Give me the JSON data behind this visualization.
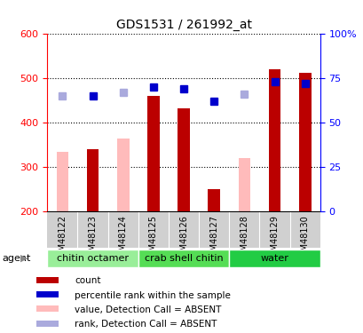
{
  "title": "GDS1531 / 261992_at",
  "samples": [
    "GSM48122",
    "GSM48123",
    "GSM48124",
    "GSM48125",
    "GSM48126",
    "GSM48127",
    "GSM48128",
    "GSM48129",
    "GSM48130"
  ],
  "groups": [
    {
      "name": "chitin octamer",
      "indices": [
        0,
        1,
        2
      ],
      "color": "#99ee99"
    },
    {
      "name": "crab shell chitin",
      "indices": [
        3,
        4,
        5
      ],
      "color": "#55dd55"
    },
    {
      "name": "water",
      "indices": [
        6,
        7,
        8
      ],
      "color": "#22cc44"
    }
  ],
  "bar_values": [
    null,
    340,
    null,
    460,
    432,
    250,
    null,
    519,
    512
  ],
  "bar_absent": [
    333,
    null,
    363,
    null,
    null,
    null,
    319,
    null,
    null
  ],
  "rank_present_pct": [
    null,
    65,
    null,
    70,
    69,
    62,
    null,
    73,
    72
  ],
  "rank_absent_pct": [
    65,
    null,
    67,
    null,
    null,
    null,
    66,
    null,
    null
  ],
  "ylim_left": [
    200,
    600
  ],
  "ylim_right": [
    0,
    100
  ],
  "yticks_left": [
    200,
    300,
    400,
    500,
    600
  ],
  "yticks_right": [
    0,
    25,
    50,
    75,
    100
  ],
  "yticklabels_right": [
    "0",
    "25",
    "50",
    "75",
    "100%"
  ],
  "bar_color": "#bb0000",
  "bar_absent_color": "#ffbbbb",
  "rank_present_color": "#0000cc",
  "rank_absent_color": "#aaaadd",
  "marker_size": 6,
  "legend_items": [
    {
      "label": "count",
      "color": "#bb0000"
    },
    {
      "label": "percentile rank within the sample",
      "color": "#0000cc"
    },
    {
      "label": "value, Detection Call = ABSENT",
      "color": "#ffbbbb"
    },
    {
      "label": "rank, Detection Call = ABSENT",
      "color": "#aaaadd"
    }
  ],
  "agent_label": "agent"
}
